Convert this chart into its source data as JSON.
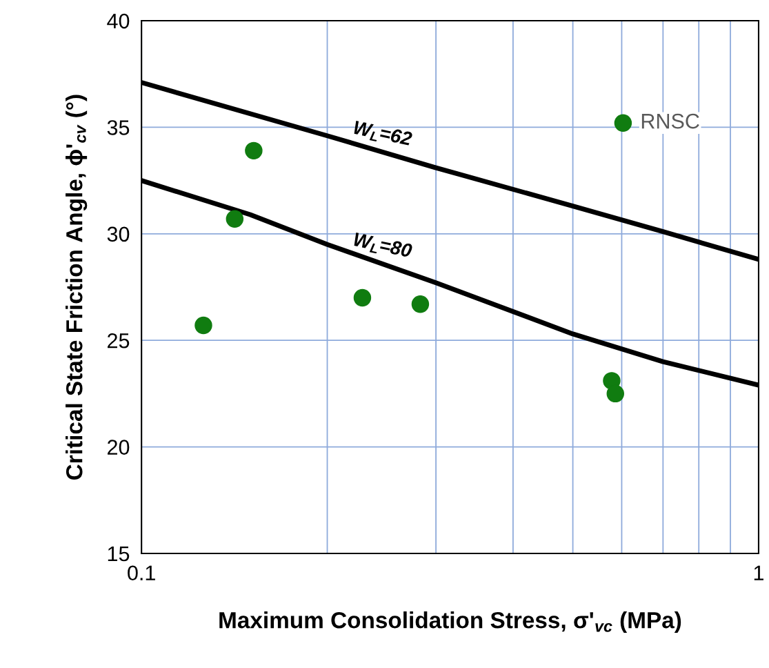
{
  "chart_data": {
    "type": "scatter",
    "xlabel": "Maximum Consolidation Stress, σ'$_{vc}$ (MPa)",
    "ylabel": "Critical State Friction Angle, ϕ'$_{cv}$ (°)",
    "log": "x",
    "xlim": [
      0.1,
      1
    ],
    "ylim": [
      15,
      40
    ],
    "xticks": [
      {
        "value": 0.1,
        "label": "0.1"
      },
      {
        "value": 0.2,
        "label": null
      },
      {
        "value": 0.3,
        "label": null
      },
      {
        "value": 0.4,
        "label": null
      },
      {
        "value": 0.5,
        "label": null
      },
      {
        "value": 0.6,
        "label": null
      },
      {
        "value": 0.7,
        "label": null
      },
      {
        "value": 0.8,
        "label": null
      },
      {
        "value": 0.9,
        "label": null
      },
      {
        "value": 1,
        "label": "1"
      }
    ],
    "yticks": [
      15,
      20,
      25,
      30,
      35,
      40
    ],
    "grid": true,
    "marker": "circle",
    "series": [
      {
        "color": "#107c10",
        "x": [
          0.126,
          0.1416,
          0.152,
          0.228,
          0.283,
          0.578,
          0.586,
          0.603
        ],
        "values": [
          25.7,
          30.7,
          33.9,
          27.0,
          26.7,
          23.1,
          22.5,
          35.2
        ]
      },
      {
        "type": "line",
        "name": "W$_{L}$=62",
        "color": "#000000",
        "marker": "none",
        "x": [
          0.1,
          0.2,
          0.3,
          0.5,
          0.7,
          1
        ],
        "values": [
          37.1,
          34.6,
          33.1,
          31.3,
          30.1,
          28.8
        ]
      },
      {
        "type": "line",
        "name": "W$_{L}$=80",
        "color": "#000000",
        "marker": "none",
        "x": [
          0.1,
          0.15,
          0.2,
          0.3,
          0.5,
          0.7,
          1
        ],
        "values": [
          32.5,
          30.9,
          29.5,
          27.7,
          25.3,
          24.0,
          22.9
        ]
      }
    ],
    "annotations": [
      {
        "text": "RNSC",
        "x": 0.603,
        "y": 35.2
      }
    ]
  }
}
